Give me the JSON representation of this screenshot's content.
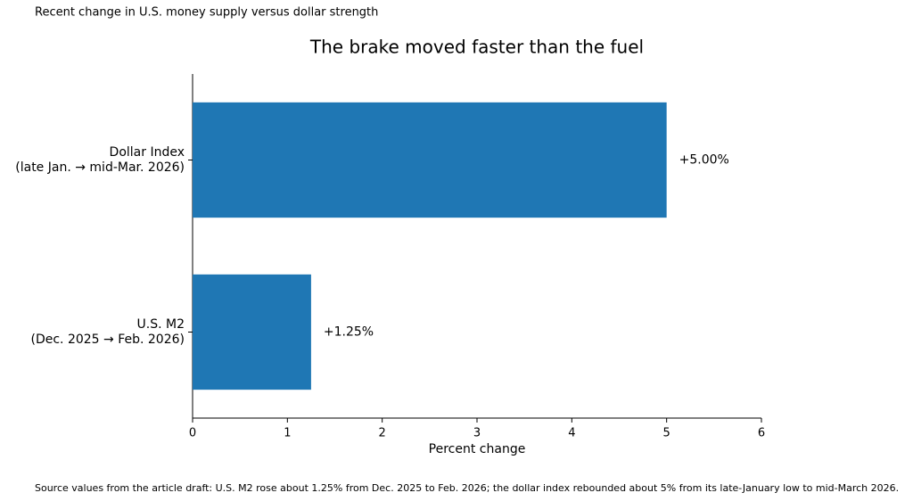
{
  "chart_data": {
    "type": "barh",
    "suptitle": "Recent change in U.S. money supply versus dollar strength",
    "title": "The brake moved faster than the fuel",
    "xlabel": "Percent change",
    "source": "Source values from the article draft: U.S. M2 rose about 1.25% from Dec. 2025 to Feb. 2026; the dollar index rebounded about 5% from its late-January low to mid-March 2026.",
    "categories": [
      "U.S. M2\n(Dec. 2025 → Feb. 2026)",
      "Dollar Index\n(late Jan. → mid-Mar. 2026)"
    ],
    "values": [
      1.25,
      5
    ],
    "value_labels": [
      "+1.25%",
      "+5.00%"
    ],
    "color": "#1f77b4",
    "xlim": [
      0,
      6
    ],
    "xticks": [
      0,
      1,
      2,
      3,
      4,
      5,
      6
    ],
    "grid": false
  }
}
